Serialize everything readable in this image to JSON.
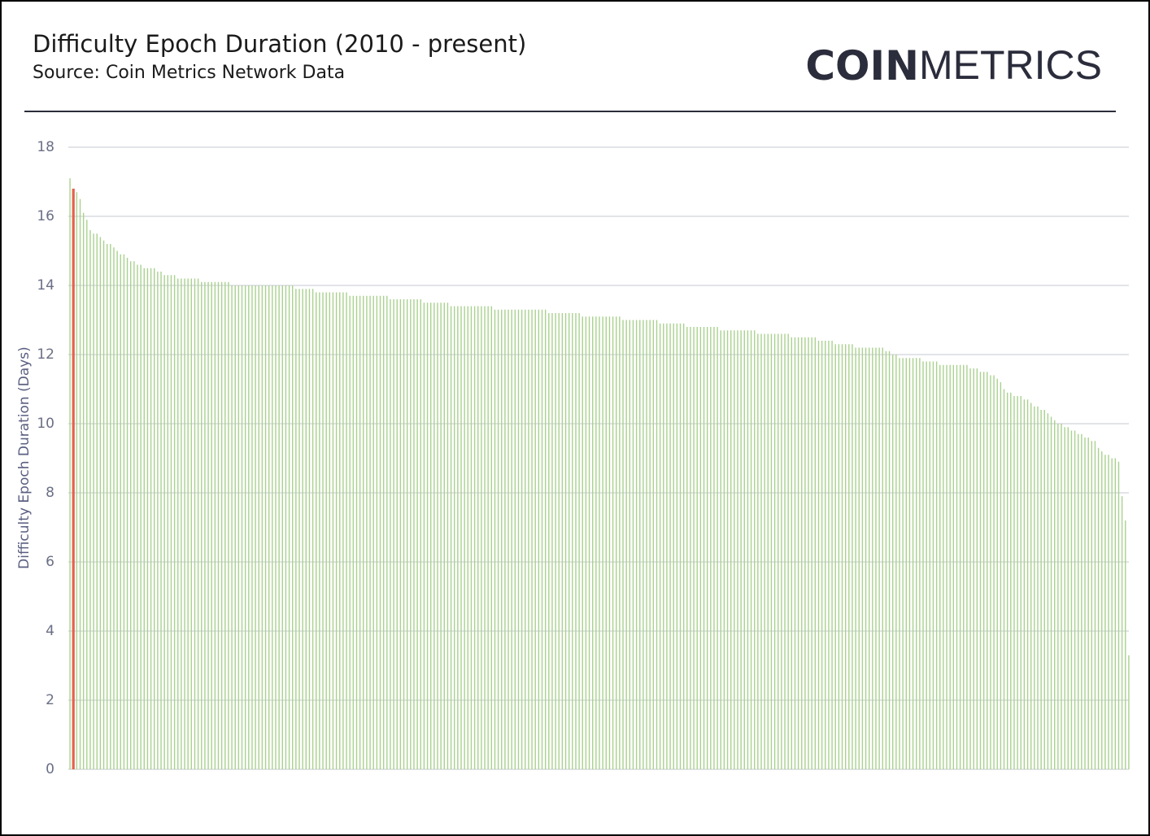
{
  "chart_data": {
    "type": "bar",
    "title": "Difficulty Epoch Duration (2010 - present)",
    "subtitle": "Source: Coin Metrics Network Data",
    "ylabel": "Difficulty Epoch Duration (Days)",
    "ylim": [
      0,
      18
    ],
    "yticks": [
      0,
      2,
      4,
      6,
      8,
      10,
      12,
      14,
      16,
      18
    ],
    "grid": true,
    "color": "#a9d18e",
    "highlight_index": 1,
    "highlight_color": "#e5614c",
    "values": [
      17.1,
      16.8,
      16.7,
      16.5,
      16.1,
      15.9,
      15.6,
      15.5,
      15.5,
      15.4,
      15.3,
      15.2,
      15.2,
      15.1,
      15.0,
      14.9,
      14.9,
      14.8,
      14.7,
      14.7,
      14.6,
      14.6,
      14.5,
      14.5,
      14.5,
      14.5,
      14.4,
      14.4,
      14.3,
      14.3,
      14.3,
      14.3,
      14.2,
      14.2,
      14.2,
      14.2,
      14.2,
      14.2,
      14.2,
      14.1,
      14.1,
      14.1,
      14.1,
      14.1,
      14.1,
      14.1,
      14.1,
      14.1,
      14.0,
      14.0,
      14.0,
      14.0,
      14.0,
      14.0,
      14.0,
      14.0,
      14.0,
      14.0,
      14.0,
      14.0,
      14.0,
      14.0,
      14.0,
      14.0,
      14.0,
      14.0,
      14.0,
      13.9,
      13.9,
      13.9,
      13.9,
      13.9,
      13.9,
      13.8,
      13.8,
      13.8,
      13.8,
      13.8,
      13.8,
      13.8,
      13.8,
      13.8,
      13.8,
      13.7,
      13.7,
      13.7,
      13.7,
      13.7,
      13.7,
      13.7,
      13.7,
      13.7,
      13.7,
      13.7,
      13.7,
      13.6,
      13.6,
      13.6,
      13.6,
      13.6,
      13.6,
      13.6,
      13.6,
      13.6,
      13.6,
      13.5,
      13.5,
      13.5,
      13.5,
      13.5,
      13.5,
      13.5,
      13.5,
      13.4,
      13.4,
      13.4,
      13.4,
      13.4,
      13.4,
      13.4,
      13.4,
      13.4,
      13.4,
      13.4,
      13.4,
      13.4,
      13.3,
      13.3,
      13.3,
      13.3,
      13.3,
      13.3,
      13.3,
      13.3,
      13.3,
      13.3,
      13.3,
      13.3,
      13.3,
      13.3,
      13.3,
      13.3,
      13.2,
      13.2,
      13.2,
      13.2,
      13.2,
      13.2,
      13.2,
      13.2,
      13.2,
      13.2,
      13.1,
      13.1,
      13.1,
      13.1,
      13.1,
      13.1,
      13.1,
      13.1,
      13.1,
      13.1,
      13.1,
      13.1,
      13.0,
      13.0,
      13.0,
      13.0,
      13.0,
      13.0,
      13.0,
      13.0,
      13.0,
      13.0,
      13.0,
      12.9,
      12.9,
      12.9,
      12.9,
      12.9,
      12.9,
      12.9,
      12.9,
      12.8,
      12.8,
      12.8,
      12.8,
      12.8,
      12.8,
      12.8,
      12.8,
      12.8,
      12.8,
      12.7,
      12.7,
      12.7,
      12.7,
      12.7,
      12.7,
      12.7,
      12.7,
      12.7,
      12.7,
      12.7,
      12.6,
      12.6,
      12.6,
      12.6,
      12.6,
      12.6,
      12.6,
      12.6,
      12.6,
      12.6,
      12.5,
      12.5,
      12.5,
      12.5,
      12.5,
      12.5,
      12.5,
      12.5,
      12.4,
      12.4,
      12.4,
      12.4,
      12.4,
      12.3,
      12.3,
      12.3,
      12.3,
      12.3,
      12.3,
      12.2,
      12.2,
      12.2,
      12.2,
      12.2,
      12.2,
      12.2,
      12.2,
      12.2,
      12.1,
      12.1,
      12.0,
      12.0,
      11.9,
      11.9,
      11.9,
      11.9,
      11.9,
      11.9,
      11.9,
      11.8,
      11.8,
      11.8,
      11.8,
      11.8,
      11.7,
      11.7,
      11.7,
      11.7,
      11.7,
      11.7,
      11.7,
      11.7,
      11.7,
      11.6,
      11.6,
      11.6,
      11.5,
      11.5,
      11.5,
      11.4,
      11.4,
      11.3,
      11.2,
      11.0,
      10.9,
      10.9,
      10.8,
      10.8,
      10.8,
      10.7,
      10.7,
      10.6,
      10.5,
      10.5,
      10.4,
      10.4,
      10.3,
      10.2,
      10.1,
      10.0,
      10.0,
      9.9,
      9.9,
      9.8,
      9.8,
      9.7,
      9.7,
      9.6,
      9.6,
      9.5,
      9.5,
      9.3,
      9.2,
      9.1,
      9.1,
      9.0,
      9.0,
      8.9,
      7.9,
      7.2,
      3.3
    ]
  },
  "logo": {
    "bold": "COIN",
    "light": "METRICS"
  }
}
